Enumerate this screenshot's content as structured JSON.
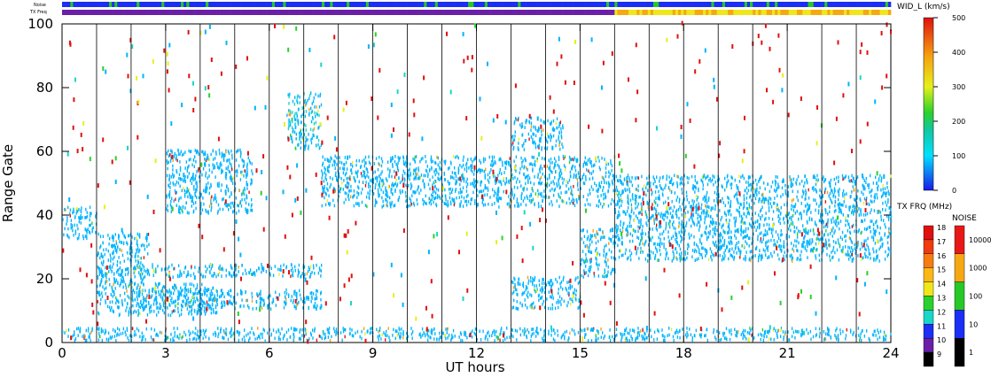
{
  "chart_data": {
    "type": "heatmap",
    "xlabel": "UT hours",
    "ylabel": "Range Gate",
    "xlim": [
      0,
      24
    ],
    "ylim": [
      0,
      100
    ],
    "x_ticks": [
      "0",
      "3",
      "6",
      "9",
      "12",
      "15",
      "18",
      "21",
      "24"
    ],
    "y_ticks": [
      "0",
      "20",
      "40",
      "60",
      "80",
      "100"
    ],
    "x_tick_values": [
      0,
      3,
      6,
      9,
      12,
      15,
      18,
      21,
      24
    ],
    "y_tick_values": [
      0,
      20,
      40,
      60,
      80,
      100
    ],
    "hour_markers": [
      1,
      2,
      3,
      4,
      5,
      6,
      7,
      8,
      9,
      10,
      11,
      12,
      13,
      14,
      15,
      16,
      17,
      18,
      19,
      20,
      21,
      22,
      23
    ],
    "top_strip_labels": [
      "Noise",
      "TX Freq"
    ],
    "colorbars": {
      "width": {
        "title": "WID_L (km/s)",
        "ticks": [
          "500",
          "400",
          "300",
          "200",
          "100",
          "0"
        ],
        "tick_values": [
          500,
          400,
          300,
          200,
          100,
          0
        ],
        "range": [
          0,
          500
        ]
      },
      "tx_freq": {
        "title": "TX FRQ (MHz)",
        "labels": [
          "18",
          "17",
          "16",
          "15",
          "14",
          "13",
          "12",
          "11",
          "10",
          "9"
        ],
        "colors": [
          "#e01010",
          "#f03a10",
          "#f57c10",
          "#fbb814",
          "#f0e619",
          "#2ad12a",
          "#18d6c8",
          "#1a30f2",
          "#6a1fa8",
          "#000000"
        ]
      },
      "noise": {
        "title": "NOISE",
        "labels": [
          "10000",
          "1000",
          "100",
          "10",
          "1"
        ],
        "colors": [
          "#e81818",
          "#f5a814",
          "#27c827",
          "#1b2ef5",
          "#000000"
        ]
      }
    },
    "scatter_regions": [
      {
        "t0": 0.0,
        "t1": 1.0,
        "g0": 32,
        "g1": 42,
        "width": 70
      },
      {
        "t0": 1.0,
        "t1": 2.5,
        "g0": 18,
        "g1": 34,
        "width": 60
      },
      {
        "t0": 1.0,
        "t1": 4.5,
        "g0": 8,
        "g1": 18,
        "width": 40
      },
      {
        "t0": 2.0,
        "t1": 7.5,
        "g0": 10,
        "g1": 16,
        "width": 35
      },
      {
        "t0": 1.0,
        "t1": 7.5,
        "g0": 20,
        "g1": 24,
        "width": 45
      },
      {
        "t0": 3.0,
        "t1": 5.5,
        "g0": 40,
        "g1": 60,
        "width": 50
      },
      {
        "t0": 6.5,
        "t1": 7.5,
        "g0": 60,
        "g1": 78,
        "width": 100
      },
      {
        "t0": 7.5,
        "t1": 16.0,
        "g0": 42,
        "g1": 58,
        "width": 55
      },
      {
        "t0": 13.0,
        "t1": 14.5,
        "g0": 60,
        "g1": 70,
        "width": 80
      },
      {
        "t0": 13.0,
        "t1": 15.0,
        "g0": 10,
        "g1": 20,
        "width": 45
      },
      {
        "t0": 15.0,
        "t1": 16.0,
        "g0": 20,
        "g1": 35,
        "width": 60
      },
      {
        "t0": 16.0,
        "t1": 24.0,
        "g0": 25,
        "g1": 52,
        "width": 50
      },
      {
        "t0": 0.0,
        "t1": 24.0,
        "g0": 0,
        "g1": 4,
        "width": 45
      }
    ]
  }
}
